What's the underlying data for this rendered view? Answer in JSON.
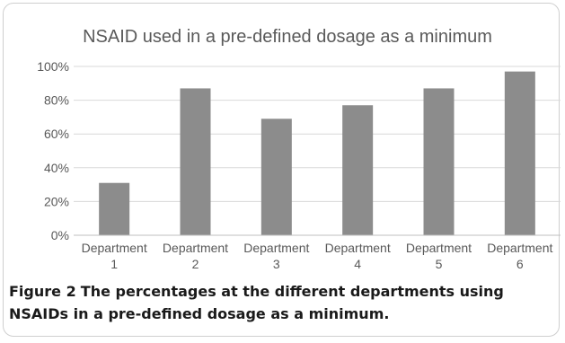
{
  "chart_data": {
    "type": "bar",
    "title": "NSAID used in a pre-defined dosage as a minimum",
    "categories": [
      [
        "Department",
        "1"
      ],
      [
        "Department",
        "2"
      ],
      [
        "Department",
        "3"
      ],
      [
        "Department",
        "4"
      ],
      [
        "Department",
        "5"
      ],
      [
        "Department",
        "6"
      ]
    ],
    "values": [
      31,
      87,
      69,
      77,
      87,
      97
    ],
    "ylim": [
      0,
      100
    ],
    "yticks": [
      "0%",
      "20%",
      "40%",
      "60%",
      "80%",
      "100%"
    ],
    "ytick_values": [
      0,
      20,
      40,
      60,
      80,
      100
    ],
    "grid": true,
    "legend": "none",
    "bar_color": "#8c8c8c",
    "grid_color": "#d9d9d9",
    "xlabel": "",
    "ylabel": ""
  },
  "caption": {
    "label": "Figure 2",
    "text": "The percentages at the different departments using NSAIDs in a pre-defined dosage as a minimum."
  }
}
